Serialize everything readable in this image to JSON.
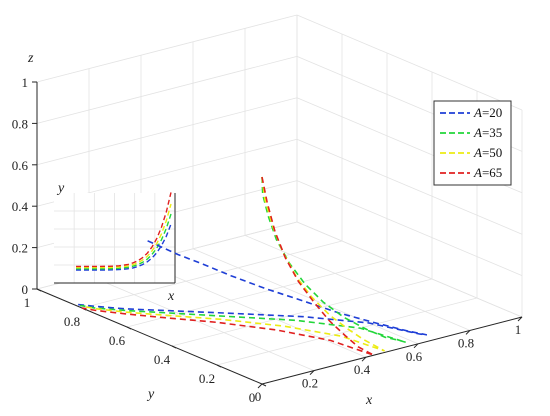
{
  "chart_data": {
    "type": "line",
    "projection": "3d",
    "title": "",
    "xlabel": "x",
    "ylabel": "y",
    "zlabel": "z",
    "xlim": [
      0,
      1
    ],
    "ylim": [
      0,
      1
    ],
    "zlim": [
      0,
      1
    ],
    "xticks": [
      "0",
      "0.2",
      "0.4",
      "0.6",
      "0.8",
      "1"
    ],
    "yticks": [
      "0",
      "0.2",
      "0.4",
      "0.6",
      "0.8",
      "1"
    ],
    "zticks": [
      "0",
      "0.2",
      "0.4",
      "0.6",
      "0.8",
      "1"
    ],
    "grid": true,
    "legend_position": "right",
    "line_style": "dashed",
    "series": [
      {
        "name": "A=20",
        "param": "A",
        "value": "20",
        "color": "#1f3fd6",
        "points": [
          [
            0.01,
            0.52,
            0.45
          ],
          [
            0.02,
            0.48,
            0.44
          ],
          [
            0.04,
            0.42,
            0.42
          ],
          [
            0.08,
            0.36,
            0.39
          ],
          [
            0.14,
            0.3,
            0.34
          ],
          [
            0.22,
            0.24,
            0.28
          ],
          [
            0.31,
            0.18,
            0.22
          ],
          [
            0.41,
            0.13,
            0.15
          ],
          [
            0.51,
            0.09,
            0.09
          ],
          [
            0.6,
            0.05,
            0.04
          ],
          [
            0.66,
            0.03,
            0.01
          ],
          [
            0.66,
            0.06,
            0.0
          ],
          [
            0.6,
            0.22,
            0.0
          ],
          [
            0.48,
            0.37,
            0.0
          ],
          [
            0.33,
            0.51,
            0.0
          ],
          [
            0.2,
            0.63,
            0.0
          ],
          [
            0.1,
            0.72,
            0.0
          ],
          [
            0.04,
            0.79,
            0.0
          ],
          [
            0.01,
            0.83,
            0.0
          ]
        ]
      },
      {
        "name": "A=35",
        "param": "A",
        "value": "35",
        "color": "#22d63a",
        "points": [
          [
            0.0,
            0.0,
            1.0
          ],
          [
            0.02,
            0.02,
            0.9
          ],
          [
            0.05,
            0.03,
            0.78
          ],
          [
            0.09,
            0.04,
            0.65
          ],
          [
            0.14,
            0.04,
            0.52
          ],
          [
            0.2,
            0.04,
            0.4
          ],
          [
            0.27,
            0.04,
            0.29
          ],
          [
            0.35,
            0.04,
            0.19
          ],
          [
            0.43,
            0.03,
            0.11
          ],
          [
            0.5,
            0.03,
            0.05
          ],
          [
            0.55,
            0.03,
            0.02
          ],
          [
            0.58,
            0.03,
            0.0
          ],
          [
            0.55,
            0.2,
            0.0
          ],
          [
            0.44,
            0.36,
            0.0
          ],
          [
            0.3,
            0.5,
            0.0
          ],
          [
            0.18,
            0.62,
            0.0
          ],
          [
            0.09,
            0.71,
            0.0
          ],
          [
            0.03,
            0.78,
            0.0
          ],
          [
            0.01,
            0.82,
            0.0
          ]
        ]
      },
      {
        "name": "A=50",
        "param": "A",
        "value": "50",
        "color": "#ecec14",
        "points": [
          [
            0.0,
            0.0,
            1.0
          ],
          [
            0.02,
            0.01,
            0.88
          ],
          [
            0.05,
            0.01,
            0.74
          ],
          [
            0.09,
            0.01,
            0.6
          ],
          [
            0.14,
            0.01,
            0.47
          ],
          [
            0.2,
            0.01,
            0.35
          ],
          [
            0.27,
            0.01,
            0.24
          ],
          [
            0.34,
            0.01,
            0.15
          ],
          [
            0.4,
            0.01,
            0.08
          ],
          [
            0.45,
            0.01,
            0.03
          ],
          [
            0.48,
            0.01,
            0.0
          ],
          [
            0.46,
            0.18,
            0.0
          ],
          [
            0.38,
            0.34,
            0.0
          ],
          [
            0.27,
            0.49,
            0.0
          ],
          [
            0.16,
            0.61,
            0.0
          ],
          [
            0.08,
            0.7,
            0.0
          ],
          [
            0.03,
            0.77,
            0.0
          ],
          [
            0.01,
            0.81,
            0.0
          ]
        ]
      },
      {
        "name": "A=65",
        "param": "A",
        "value": "65",
        "color": "#e02020",
        "points": [
          [
            0.0,
            0.0,
            1.0
          ],
          [
            0.02,
            0.0,
            0.87
          ],
          [
            0.05,
            0.0,
            0.72
          ],
          [
            0.09,
            0.0,
            0.58
          ],
          [
            0.14,
            0.0,
            0.45
          ],
          [
            0.2,
            0.0,
            0.33
          ],
          [
            0.26,
            0.0,
            0.22
          ],
          [
            0.32,
            0.0,
            0.13
          ],
          [
            0.37,
            0.0,
            0.06
          ],
          [
            0.41,
            0.0,
            0.02
          ],
          [
            0.43,
            0.0,
            0.0
          ],
          [
            0.41,
            0.17,
            0.0
          ],
          [
            0.34,
            0.33,
            0.0
          ],
          [
            0.24,
            0.48,
            0.0
          ],
          [
            0.14,
            0.6,
            0.0
          ],
          [
            0.07,
            0.69,
            0.0
          ],
          [
            0.02,
            0.76,
            0.0
          ],
          [
            0.0,
            0.8,
            0.0
          ]
        ]
      }
    ],
    "inset": {
      "xlabel": "x",
      "ylabel": "y",
      "note": "xy-plane projection"
    }
  },
  "legend": {
    "entries": [
      {
        "italic": "A",
        "rest": "=20"
      },
      {
        "italic": "A",
        "rest": "=35"
      },
      {
        "italic": "A",
        "rest": "=50"
      },
      {
        "italic": "A",
        "rest": "=65"
      }
    ]
  }
}
